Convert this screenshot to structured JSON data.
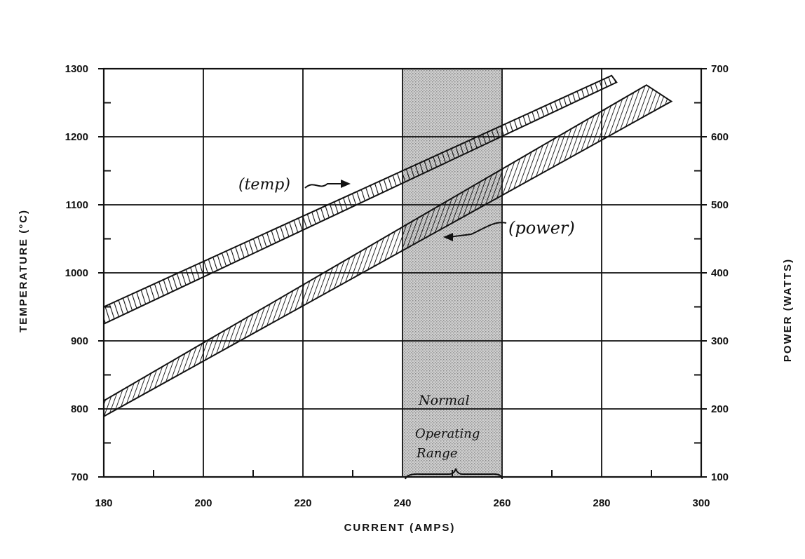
{
  "chart_data": {
    "type": "line",
    "xlabel": "CURRENT (AMPS)",
    "ylabel_left": "TEMPERATURE (°C)",
    "ylabel_right": "POWER (WATTS)",
    "xlim": [
      180,
      300
    ],
    "ylim_left": [
      700,
      1300
    ],
    "ylim_right": [
      100,
      700
    ],
    "x_ticks": [
      180,
      200,
      220,
      240,
      260,
      280,
      300
    ],
    "y_ticks_left": [
      700,
      800,
      900,
      1000,
      1100,
      1200,
      1300
    ],
    "y_ticks_right": [
      100,
      200,
      300,
      400,
      500,
      600,
      700
    ],
    "grid": true,
    "operating_range": {
      "x": [
        240,
        260
      ],
      "label_line1": "Normal",
      "label_line2": "Operating",
      "label_line3": "Range"
    },
    "series": [
      {
        "name": "(temp)",
        "axis": "left",
        "upper": [
          [
            180,
            950
          ],
          [
            282,
            1290
          ]
        ],
        "lower": [
          [
            180,
            925
          ],
          [
            283,
            1280
          ]
        ]
      },
      {
        "name": "(power)",
        "axis": "right",
        "upper": [
          [
            180,
            212
          ],
          [
            289,
            676
          ]
        ],
        "lower": [
          [
            180,
            189
          ],
          [
            294,
            652
          ]
        ]
      }
    ]
  }
}
